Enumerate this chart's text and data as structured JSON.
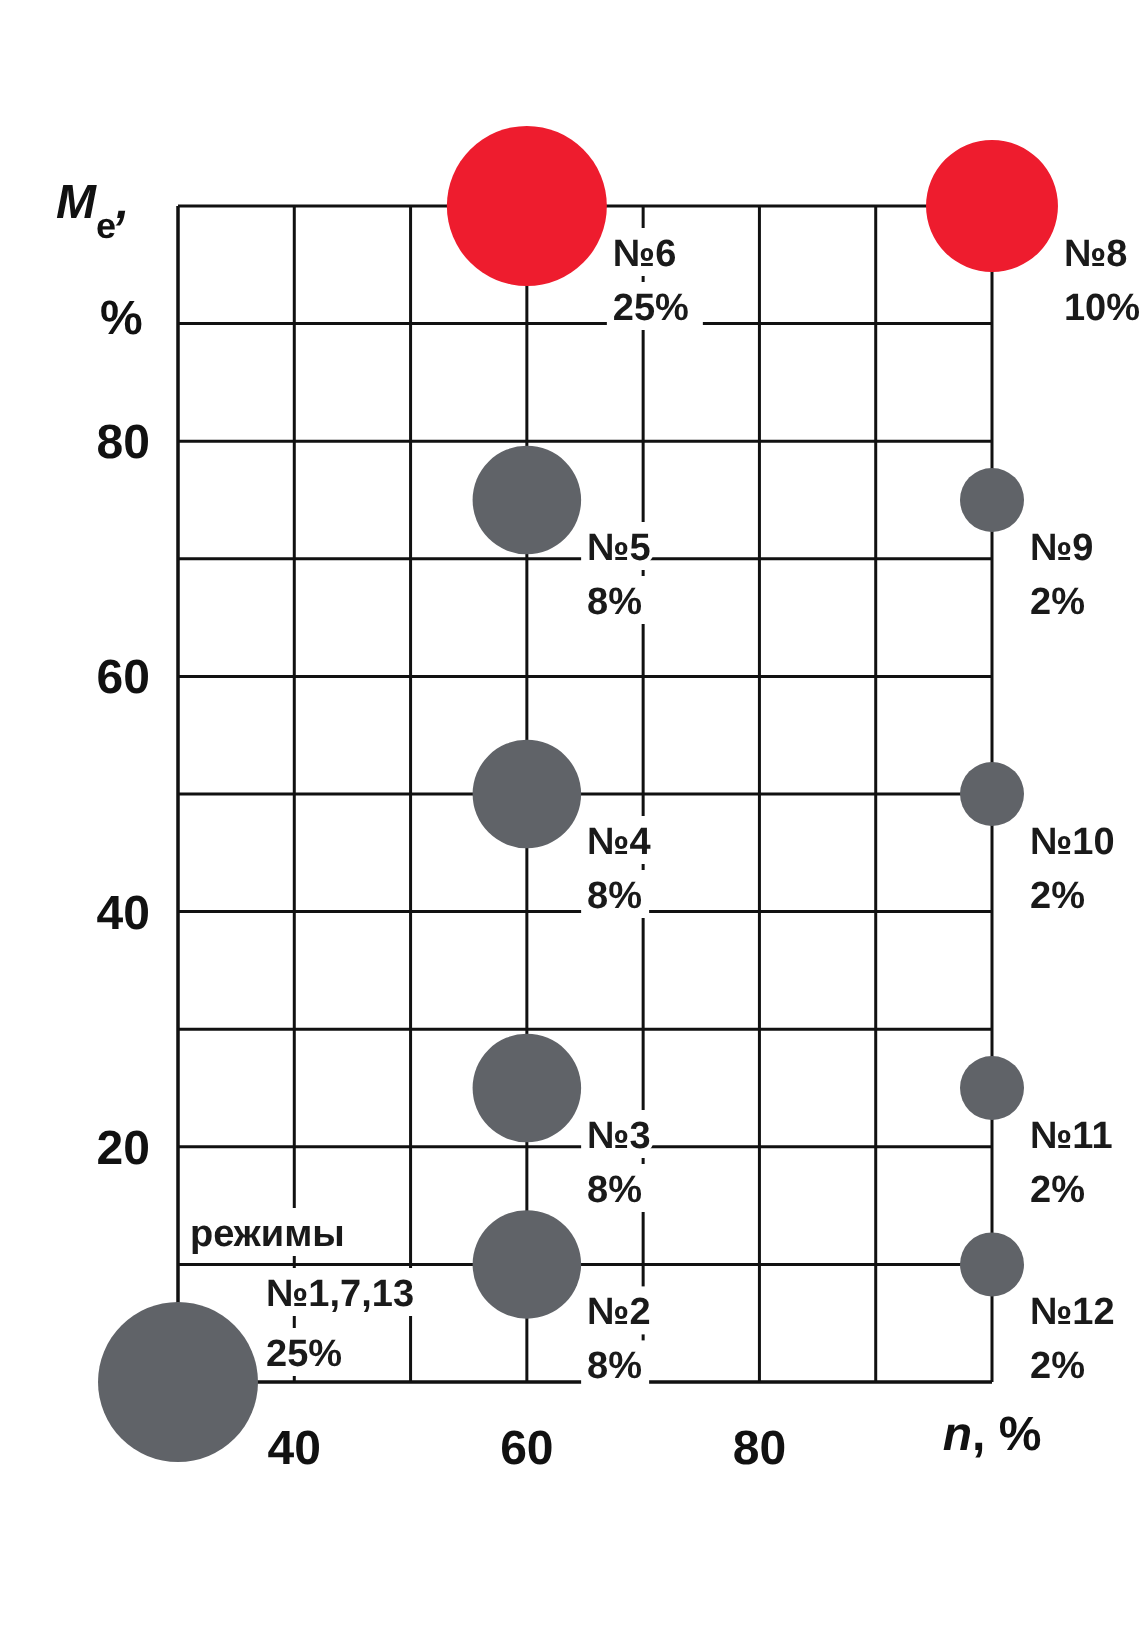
{
  "chart_data": {
    "type": "bubble",
    "xlabel": "n, %",
    "ylabel": "M$_{e}$, %",
    "x": [
      30,
      60,
      60,
      60,
      60,
      60,
      100,
      100,
      100,
      100,
      100
    ],
    "values": [
      0,
      10,
      25,
      50,
      75,
      100,
      100,
      75,
      50,
      25,
      10
    ],
    "sizes": [
      1,
      0.46,
      0.46,
      0.46,
      0.46,
      1,
      0.68,
      0.16,
      0.16,
      0.16,
      0.16
    ],
    "colors": [
      "#606368",
      "#606368",
      "#606368",
      "#606368",
      "#606368",
      "#ee1c2e",
      "#ee1c2e",
      "#606368",
      "#606368",
      "#606368",
      "#606368"
    ],
    "value_labels": [
      "режимы\n№1,7,13\n25%",
      "№2\n8%",
      "№3\n8%",
      "№4\n8%",
      "№5\n8%",
      "№6\n25%",
      "№8\n10%",
      "№9\n2%",
      "№10\n2%",
      "№11\n2%",
      "№12\n2%"
    ],
    "xlim": [
      30,
      100
    ],
    "xticks": [
      {
        "value": 30,
        "label": null
      },
      40,
      {
        "value": 50,
        "label": null
      },
      60,
      {
        "value": 70,
        "label": null
      },
      80,
      {
        "value": 90,
        "label": null
      },
      {
        "value": 100,
        "label": null
      }
    ],
    "ylim": [
      0,
      100
    ],
    "yticks": [
      {
        "value": 0,
        "label": null
      },
      {
        "value": 10,
        "label": null
      },
      20,
      {
        "value": 30,
        "label": null
      },
      40,
      {
        "value": 50,
        "label": null
      },
      60,
      {
        "value": 70,
        "label": null
      },
      80,
      {
        "value": 90,
        "label": null
      },
      {
        "value": 100,
        "label": null
      }
    ],
    "grid": true,
    "legend": false
  }
}
